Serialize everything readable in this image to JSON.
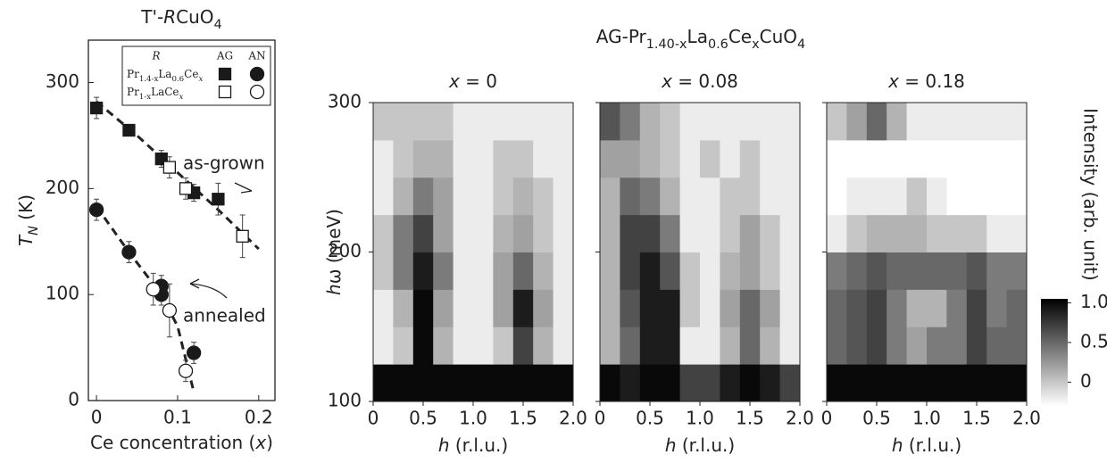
{
  "chart_data": [
    {
      "type": "scatter",
      "title": [
        {
          "text": "T'-"
        },
        {
          "text": "R",
          "italic": true
        },
        {
          "text": "CuO"
        },
        {
          "text": "4",
          "sub": true
        }
      ],
      "xlabel": [
        {
          "text": "Ce concentration ("
        },
        {
          "text": "x",
          "italic": true
        },
        {
          "text": ")"
        }
      ],
      "ylabel": [
        {
          "text": "T",
          "italic": true
        },
        {
          "text": "N",
          "sub": true,
          "italic": true
        },
        {
          "text": " (K)"
        }
      ],
      "xlim": [
        -0.01,
        0.22
      ],
      "xticks": [
        0,
        0.1,
        0.2
      ],
      "ylim": [
        0,
        340
      ],
      "yticks": [
        0,
        100,
        200,
        300
      ],
      "legend": {
        "title": "R",
        "columns": [
          "AG",
          "AN"
        ],
        "rows": [
          [
            {
              "text": "Pr"
            },
            {
              "text": "1.4-x",
              "sub": true
            },
            {
              "text": "La"
            },
            {
              "text": "0.6",
              "sub": true
            },
            {
              "text": "Ce"
            },
            {
              "text": "x",
              "sub": true,
              "italic": true
            }
          ],
          [
            {
              "text": "Pr"
            },
            {
              "text": "1-x",
              "sub": true
            },
            {
              "text": "LaCe"
            },
            {
              "text": "x",
              "sub": true,
              "italic": true
            }
          ]
        ]
      },
      "series": [
        {
          "legend_row": 0,
          "legend_col": 0,
          "marker": "square",
          "filled": true,
          "color": "#1a1a1a",
          "x": [
            0,
            0.04,
            0.08,
            0.12,
            0.15
          ],
          "values": [
            276,
            255,
            228,
            196,
            190
          ],
          "errors": [
            10,
            5,
            8,
            8,
            15
          ]
        },
        {
          "legend_row": 1,
          "legend_col": 0,
          "marker": "square",
          "filled": false,
          "color": "#1a1a1a",
          "x": [
            0.09,
            0.11,
            0.18
          ],
          "values": [
            220,
            200,
            155
          ],
          "errors": [
            10,
            10,
            20
          ]
        },
        {
          "legend_row": 0,
          "legend_col": 1,
          "marker": "circle",
          "filled": true,
          "color": "#1a1a1a",
          "x": [
            0,
            0.04,
            0.08,
            0.08,
            0.12
          ],
          "values": [
            180,
            140,
            108,
            100,
            45
          ],
          "errors": [
            10,
            10,
            10,
            10,
            10
          ]
        },
        {
          "legend_row": 1,
          "legend_col": 1,
          "marker": "circle",
          "filled": false,
          "color": "#1a1a1a",
          "x": [
            0.07,
            0.09,
            0.11
          ],
          "values": [
            105,
            85,
            28
          ],
          "errors": [
            15,
            25,
            10
          ]
        }
      ],
      "fits": [
        {
          "x": [
            0,
            0.05,
            0.1,
            0.15,
            0.2
          ],
          "y": [
            282,
            250,
            215,
            180,
            143
          ]
        },
        {
          "x": [
            0,
            0.04,
            0.08,
            0.1,
            0.12
          ],
          "y": [
            183,
            140,
            100,
            70,
            8
          ]
        }
      ],
      "annotations": [
        "as-grown",
        "annealed"
      ]
    },
    {
      "type": "heatmap",
      "title": [
        {
          "text": "AG-Pr"
        },
        {
          "text": "1.40-x",
          "sub": true
        },
        {
          "text": "La"
        },
        {
          "text": "0.6",
          "sub": true
        },
        {
          "text": "Ce"
        },
        {
          "text": "x",
          "sub": true
        },
        {
          "text": "CuO"
        },
        {
          "text": "4",
          "sub": true
        }
      ],
      "xlabel": [
        {
          "text": "h",
          "italic": true
        },
        {
          "text": " (r.l.u.)"
        }
      ],
      "ylabel": [
        {
          "text": "h",
          "italic": true
        },
        {
          "text": "ω (meV)"
        }
      ],
      "xlim": [
        0,
        2
      ],
      "xticks": [
        0,
        0.5,
        {
          "value": 1,
          "label": "1.0"
        },
        1.5,
        {
          "value": 2,
          "label": "2.0"
        }
      ],
      "ylim": [
        100,
        300
      ],
      "yticks": [
        100,
        200,
        300
      ],
      "xbins": [
        0,
        0.2,
        0.4,
        0.6,
        0.8,
        1.0,
        1.2,
        1.4,
        1.6,
        1.8,
        2.0
      ],
      "ybins": [
        100,
        125,
        150,
        175,
        200,
        225,
        250,
        275,
        300
      ],
      "cmap": "gray_r",
      "colorbar": {
        "label": "Intensity (arb. unit)",
        "clim": [
          -0.3,
          1.05
        ],
        "ticks": [
          0,
          0.5,
          {
            "value": 1,
            "label": "1.0"
          }
        ]
      },
      "panels": [
        {
          "title": [
            {
              "text": "x",
              "italic": true
            },
            {
              "text": " = 0"
            }
          ],
          "z": [
            [
              1,
              1,
              1,
              1,
              1,
              1,
              1,
              1,
              1,
              1
            ],
            [
              -0.2,
              0,
              1,
              0.1,
              -0.2,
              -0.2,
              0,
              0.7,
              0.1,
              -0.2
            ],
            [
              -0.2,
              0.1,
              1,
              0.2,
              -0.2,
              -0.2,
              0.2,
              0.9,
              0.2,
              -0.2
            ],
            [
              0,
              0.4,
              0.9,
              0.4,
              -0.2,
              -0.2,
              0.2,
              0.5,
              0.1,
              -0.2
            ],
            [
              0,
              0.4,
              0.7,
              0.2,
              -0.2,
              -0.2,
              0.1,
              0.2,
              0,
              -0.2
            ],
            [
              -0.2,
              0.1,
              0.4,
              0.2,
              -0.2,
              -0.2,
              0,
              0.1,
              0,
              -0.2
            ],
            [
              -0.2,
              0,
              0.1,
              0.1,
              -0.2,
              -0.2,
              0,
              0,
              -0.2,
              -0.2
            ],
            [
              0,
              0,
              0,
              0,
              -0.2,
              -0.2,
              -0.2,
              -0.2,
              -0.2,
              -0.2
            ]
          ]
        },
        {
          "title": [
            {
              "text": "x",
              "italic": true
            },
            {
              "text": " = 0.08"
            }
          ],
          "z": [
            [
              1,
              0.9,
              1,
              1,
              0.7,
              0.7,
              0.9,
              1,
              0.9,
              0.7
            ],
            [
              0.1,
              0.5,
              0.9,
              0.9,
              -0.2,
              -0.2,
              0.1,
              0.5,
              0.1,
              -0.2
            ],
            [
              0.1,
              0.6,
              0.9,
              0.9,
              0,
              -0.2,
              0.2,
              0.5,
              0.2,
              -0.2
            ],
            [
              0.1,
              0.7,
              0.9,
              0.6,
              0,
              -0.2,
              0.1,
              0.2,
              0,
              -0.2
            ],
            [
              0.1,
              0.7,
              0.7,
              0.4,
              -0.2,
              -0.2,
              0,
              0.2,
              0,
              -0.2
            ],
            [
              0.1,
              0.5,
              0.4,
              0.1,
              -0.2,
              -0.2,
              0,
              0,
              -0.2,
              -0.2
            ],
            [
              0.2,
              0.2,
              0.1,
              0,
              -0.2,
              0,
              -0.2,
              0,
              -0.2,
              -0.2
            ],
            [
              0.6,
              0.4,
              0.1,
              0,
              -0.2,
              -0.2,
              -0.2,
              -0.2,
              -0.2,
              -0.2
            ]
          ]
        },
        {
          "title": [
            {
              "text": "x",
              "italic": true
            },
            {
              "text": " = 0.18"
            }
          ],
          "z": [
            [
              1,
              1,
              1,
              1,
              1,
              1,
              1,
              1,
              1,
              1
            ],
            [
              0.5,
              0.6,
              0.7,
              0.4,
              0.2,
              0.4,
              0.4,
              0.7,
              0.5,
              0.5
            ],
            [
              0.5,
              0.6,
              0.7,
              0.4,
              0.1,
              0.1,
              0.4,
              0.7,
              0.4,
              0.5
            ],
            [
              0.4,
              0.5,
              0.6,
              0.5,
              0.5,
              0.5,
              0.5,
              0.6,
              0.4,
              0.4
            ],
            [
              -0.2,
              0,
              0.1,
              0.1,
              0.1,
              0,
              0,
              0,
              -0.2,
              -0.2
            ],
            [
              -0.3,
              -0.2,
              -0.2,
              -0.2,
              0,
              -0.2,
              -0.3,
              -0.3,
              -0.3,
              -0.3
            ],
            [
              -0.3,
              -0.3,
              -0.3,
              -0.3,
              -0.3,
              -0.3,
              -0.3,
              -0.3,
              -0.3,
              -0.3
            ],
            [
              0,
              0.2,
              0.5,
              0.1,
              -0.2,
              -0.2,
              -0.2,
              -0.2,
              -0.2,
              -0.2
            ]
          ]
        }
      ]
    }
  ]
}
